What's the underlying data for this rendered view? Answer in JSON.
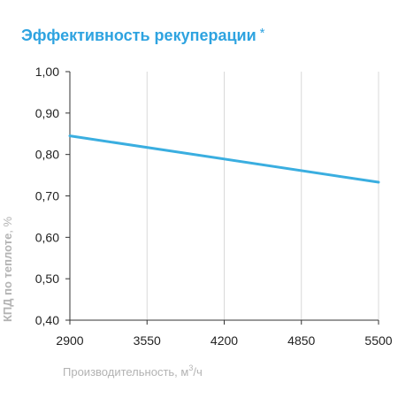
{
  "chart_data": {
    "type": "line",
    "title": "Эффективность рекуперации",
    "title_mark": "*",
    "xlabel": "Производительность, м",
    "xlabel_sup": "3",
    "xlabel_unit": "/ч",
    "ylabel": "КПД по теплоте",
    "ylabel_unit": ", %",
    "x_ticks": [
      "2900",
      "3550",
      "4200",
      "4850",
      "5500"
    ],
    "y_ticks": [
      "0,40",
      "0,50",
      "0,60",
      "0,70",
      "0,80",
      "0,90",
      "1,00"
    ],
    "xlim": [
      2900,
      5500
    ],
    "ylim": [
      0.4,
      1.0
    ],
    "grid": "vertical",
    "series": [
      {
        "color": "#3aaee0",
        "x": [
          2900,
          5500
        ],
        "y": [
          0.845,
          0.733
        ]
      }
    ]
  }
}
